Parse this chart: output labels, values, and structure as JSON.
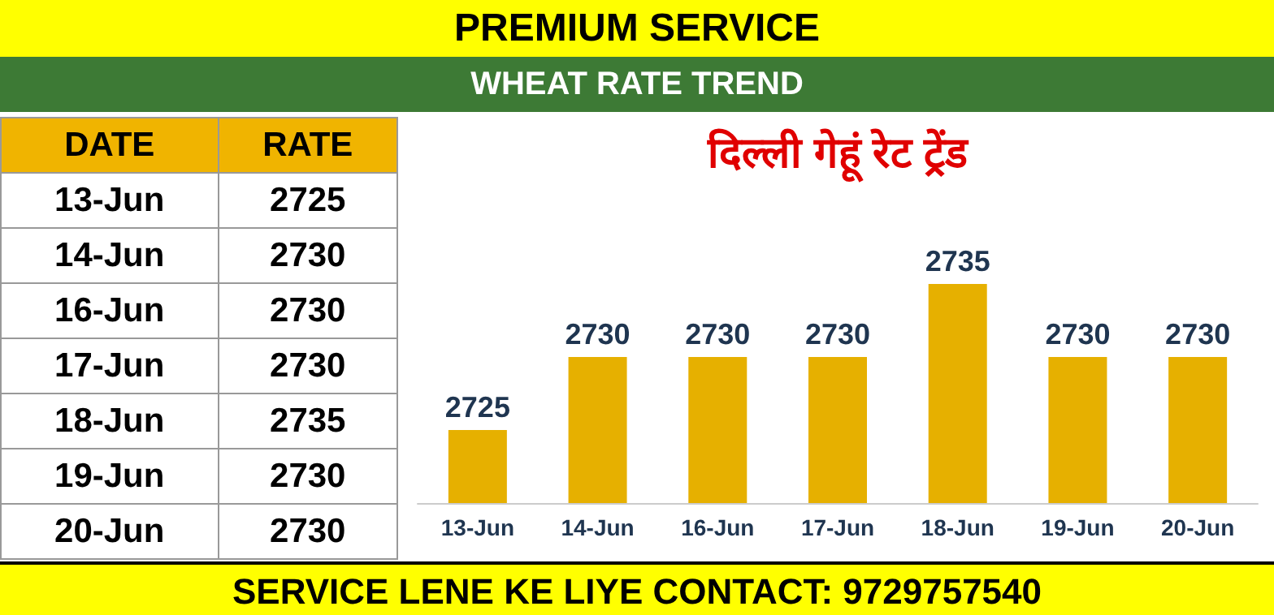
{
  "chart_data": [
    {
      "type": "other",
      "annotations": [
        "DATE",
        "RATE"
      ],
      "categories": [
        "13-Jun",
        "14-Jun",
        "16-Jun",
        "17-Jun",
        "18-Jun",
        "19-Jun",
        "20-Jun"
      ],
      "values": [
        2725,
        2730,
        2730,
        2730,
        2735,
        2730,
        2730
      ],
      "data_labels": true
    },
    {
      "type": "bar",
      "title": "WHEAT RATE TREND",
      "subtitle": "दिल्ली गेहूं रेट ट्रेंड",
      "annotations": [
        "PREMIUM SERVICE",
        "SERVICE LENE KE LIYE CONTACT: 9729757540"
      ],
      "categories": [
        "13-Jun",
        "14-Jun",
        "16-Jun",
        "17-Jun",
        "18-Jun",
        "19-Jun",
        "20-Jun"
      ],
      "values": [
        2725,
        2730,
        2730,
        2730,
        2735,
        2730,
        2730
      ],
      "color": "#e6b000",
      "ylim": [
        2720,
        2735
      ],
      "data_labels": true,
      "grid": false
    }
  ]
}
